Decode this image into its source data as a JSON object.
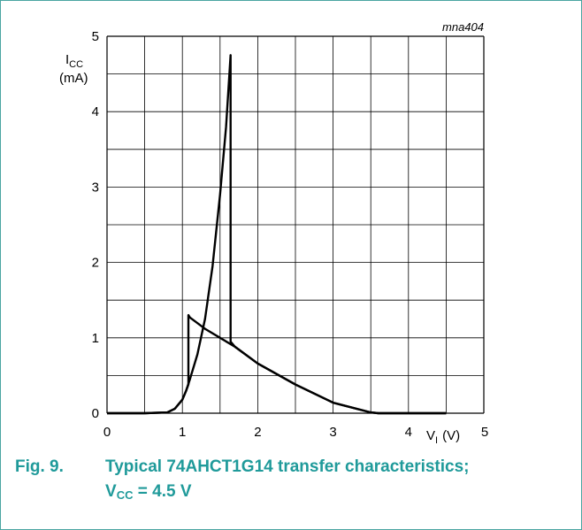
{
  "diagram_code": "mna404",
  "caption": {
    "number": "Fig. 9.",
    "line1": "Typical 74AHCT1G14 transfer characteristics;",
    "line2_symbol": "V",
    "line2_sub": "CC",
    "line2_rest": " = 4.5 V"
  },
  "chart_data": {
    "type": "line",
    "title": "Typical 74AHCT1G14 transfer characteristics; VCC = 4.5 V",
    "xlabel": "VI (V)",
    "ylabel": "ICC (mA)",
    "xlim": [
      0,
      5
    ],
    "ylim": [
      0,
      5
    ],
    "x_ticks": [
      "0",
      "1",
      "2",
      "3",
      "4",
      "5"
    ],
    "y_ticks": [
      "0",
      "1",
      "2",
      "3",
      "4",
      "5"
    ],
    "grid": true,
    "axis_labels": {
      "x_symbol": "V",
      "x_sub": "I",
      "x_unit": "(V)",
      "y_symbol": "I",
      "y_sub": "CC",
      "y_unit": "(mA)"
    },
    "series": [
      {
        "direction": "rising input",
        "x": [
          0,
          0.5,
          0.8,
          0.9,
          1.0,
          1.05,
          1.1,
          1.2,
          1.3,
          1.4,
          1.5,
          1.58,
          1.64,
          1.64,
          1.7,
          2.0,
          2.5,
          3.0,
          3.5,
          3.6,
          4.0,
          4.5
        ],
        "y": [
          0,
          0,
          0.01,
          0.06,
          0.18,
          0.3,
          0.45,
          0.78,
          1.25,
          1.95,
          2.9,
          3.8,
          4.75,
          0.95,
          0.88,
          0.66,
          0.38,
          0.14,
          0.01,
          0,
          0,
          0
        ]
      },
      {
        "direction": "falling input",
        "x": [
          4.5,
          4.0,
          3.6,
          3.5,
          3.0,
          2.5,
          2.0,
          1.7,
          1.5,
          1.3,
          1.1,
          1.08,
          1.08,
          1.05,
          1.0,
          0.9,
          0.8,
          0.5,
          0
        ],
        "y": [
          0,
          0,
          0,
          0.01,
          0.14,
          0.38,
          0.66,
          0.88,
          1.0,
          1.12,
          1.27,
          1.3,
          0.38,
          0.3,
          0.18,
          0.06,
          0.01,
          0,
          0
        ]
      }
    ]
  }
}
